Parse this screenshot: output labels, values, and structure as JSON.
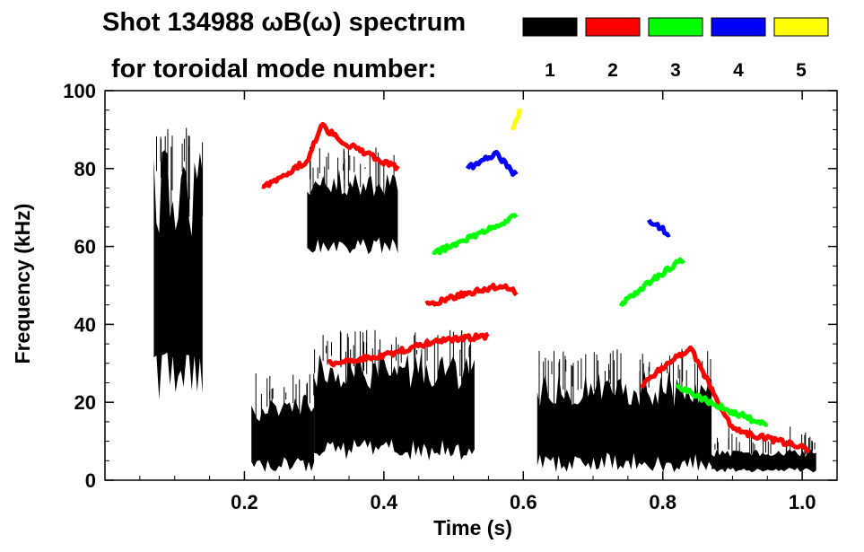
{
  "chart_data": {
    "type": "spectrogram",
    "title": "Shot 134988 ωB(ω) spectrum",
    "subtitle": "for toroidal mode number:",
    "xlabel": "Time (s)",
    "ylabel": "Frequency (kHz)",
    "xlim": [
      0.0,
      1.05
    ],
    "ylim": [
      0,
      100
    ],
    "xticks": [
      0.2,
      0.4,
      0.6,
      0.8,
      1.0
    ],
    "xtick_labels": [
      "0.2",
      "0.4",
      "0.6",
      "0.8",
      "1.0"
    ],
    "yticks": [
      0,
      20,
      40,
      60,
      80,
      100
    ],
    "ytick_labels": [
      "0",
      "20",
      "40",
      "60",
      "80",
      "100"
    ],
    "legend": [
      {
        "label": "1",
        "color": "#000000"
      },
      {
        "label": "2",
        "color": "#ff0000"
      },
      {
        "label": "3",
        "color": "#00ff00"
      },
      {
        "label": "4",
        "color": "#0000ff"
      },
      {
        "label": "5",
        "color": "#ffff00"
      }
    ],
    "series": [
      {
        "mode": "1",
        "color": "#000000",
        "regions": [
          {
            "t": [
              0.07,
              0.14
            ],
            "f": [
              20,
              85
            ]
          },
          {
            "t": [
              0.21,
              0.3
            ],
            "f": [
              2,
              22
            ]
          },
          {
            "t": [
              0.29,
              0.42
            ],
            "f": [
              58,
              80
            ]
          },
          {
            "t": [
              0.3,
              0.53
            ],
            "f": [
              5,
              33
            ]
          },
          {
            "t": [
              0.62,
              0.87
            ],
            "f": [
              2,
              28
            ]
          },
          {
            "t": [
              0.87,
              1.02
            ],
            "f": [
              2,
              8
            ]
          }
        ]
      },
      {
        "mode": "2",
        "color": "#ff0000",
        "bands": [
          {
            "t": [
              0.225,
              0.29,
              0.31,
              0.35,
              0.42
            ],
            "f": [
              75,
              82,
              91,
              86,
              80
            ]
          },
          {
            "t": [
              0.46,
              0.52,
              0.57,
              0.59
            ],
            "f": [
              45,
              48,
              50,
              48
            ]
          },
          {
            "t": [
              0.32,
              0.4,
              0.48,
              0.55
            ],
            "f": [
              30,
              32,
              36,
              37
            ]
          },
          {
            "t": [
              0.77,
              0.8,
              0.84,
              0.9,
              1.01
            ],
            "f": [
              24,
              29,
              34,
              13,
              8
            ]
          }
        ]
      },
      {
        "mode": "3",
        "color": "#00ff00",
        "bands": [
          {
            "t": [
              0.47,
              0.52,
              0.57,
              0.59
            ],
            "f": [
              58,
              62,
              66,
              68
            ]
          },
          {
            "t": [
              0.74,
              0.79,
              0.83
            ],
            "f": [
              45,
              52,
              57
            ]
          },
          {
            "t": [
              0.82,
              0.88,
              0.95
            ],
            "f": [
              24,
              19,
              14
            ]
          }
        ]
      },
      {
        "mode": "4",
        "color": "#0000ff",
        "bands": [
          {
            "t": [
              0.52,
              0.56,
              0.59
            ],
            "f": [
              80,
              84,
              78
            ]
          },
          {
            "t": [
              0.78,
              0.81
            ],
            "f": [
              67,
              63
            ]
          }
        ]
      },
      {
        "mode": "5",
        "color": "#ffff00",
        "bands": [
          {
            "t": [
              0.585,
              0.595
            ],
            "f": [
              90,
              95
            ]
          }
        ]
      }
    ]
  }
}
